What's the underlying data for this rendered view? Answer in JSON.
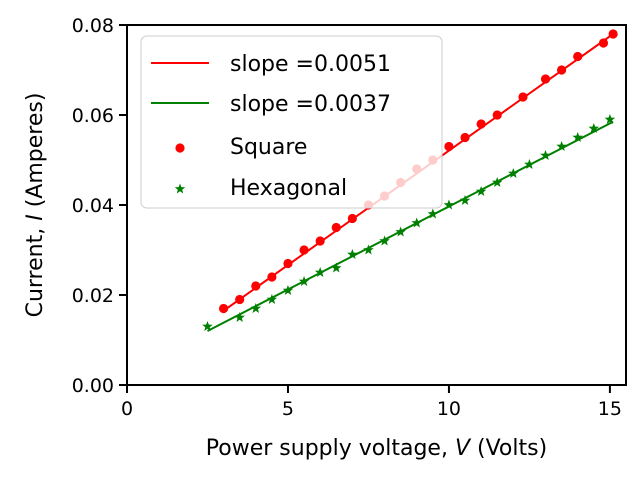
{
  "chart_data": {
    "type": "scatter",
    "title": "",
    "xlabel_prefix": "Power supply voltage, ",
    "xlabel_var": "V",
    "xlabel_suffix": " (Volts)",
    "ylabel_prefix": "Current, ",
    "ylabel_var": "I",
    "ylabel_suffix": " (Amperes)",
    "xlim": [
      0,
      15.5
    ],
    "ylim": [
      0,
      0.08
    ],
    "xticks": [
      0,
      5,
      10,
      15
    ],
    "xtick_labels": [
      "0",
      "5",
      "10",
      "15"
    ],
    "yticks": [
      0,
      0.02,
      0.04,
      0.06,
      0.08
    ],
    "ytick_labels": [
      "0.00",
      "0.02",
      "0.04",
      "0.06",
      "0.08"
    ],
    "grid": false,
    "legend_position": "top-left",
    "fit_lines": [
      {
        "label": "slope =0.0051",
        "color": "#ff0000",
        "x": [
          3.0,
          15.1
        ],
        "y": [
          0.0165,
          0.078
        ]
      },
      {
        "label": "slope =0.0037",
        "color": "#008000",
        "x": [
          2.5,
          15.1
        ],
        "y": [
          0.012,
          0.0585
        ]
      }
    ],
    "series": [
      {
        "name": "Square",
        "marker": "circle",
        "color": "#ff0000",
        "x": [
          3.0,
          3.5,
          4.0,
          4.5,
          5.0,
          5.5,
          6.0,
          6.5,
          7.0,
          7.5,
          8.0,
          8.5,
          9.0,
          9.5,
          10.0,
          10.5,
          11.0,
          11.5,
          12.3,
          13.0,
          13.5,
          14.0,
          14.8,
          15.1
        ],
        "y": [
          0.017,
          0.019,
          0.022,
          0.024,
          0.027,
          0.03,
          0.032,
          0.035,
          0.037,
          0.04,
          0.042,
          0.045,
          0.048,
          0.05,
          0.053,
          0.055,
          0.058,
          0.06,
          0.064,
          0.068,
          0.07,
          0.073,
          0.076,
          0.078
        ]
      },
      {
        "name": "Hexagonal",
        "marker": "star",
        "color": "#008000",
        "x": [
          2.5,
          3.5,
          4.0,
          4.5,
          5.0,
          5.5,
          6.0,
          6.5,
          7.0,
          7.5,
          8.0,
          8.5,
          9.0,
          9.5,
          10.0,
          10.5,
          11.0,
          11.5,
          12.0,
          12.5,
          13.0,
          13.5,
          14.0,
          14.5,
          15.0
        ],
        "y": [
          0.013,
          0.015,
          0.017,
          0.019,
          0.021,
          0.023,
          0.025,
          0.026,
          0.029,
          0.03,
          0.032,
          0.034,
          0.036,
          0.038,
          0.04,
          0.041,
          0.043,
          0.045,
          0.047,
          0.049,
          0.051,
          0.053,
          0.055,
          0.057,
          0.059
        ]
      }
    ]
  }
}
